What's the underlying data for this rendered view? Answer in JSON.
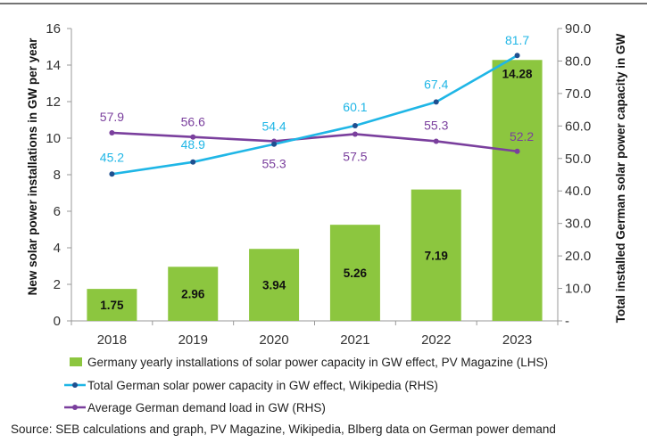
{
  "chart_data": {
    "type": "bar+line",
    "categories": [
      "2018",
      "2019",
      "2020",
      "2021",
      "2022",
      "2023"
    ],
    "bars": {
      "name": "Germany yearly installations of solar power capacity in GW effect, PV Magazine (LHS)",
      "axis": "left",
      "values": [
        1.75,
        2.96,
        3.94,
        5.26,
        7.19,
        14.28
      ],
      "labels": [
        "1.75",
        "2.96",
        "3.94",
        "5.26",
        "7.19",
        "14.28"
      ],
      "color": "#8cc63f"
    },
    "lines": [
      {
        "name": "Total German solar power capacity in GW effect, Wikipedia (RHS)",
        "axis": "right",
        "values": [
          45.2,
          48.9,
          54.4,
          60.1,
          67.4,
          81.7
        ],
        "labels": [
          "45.2",
          "48.9",
          "54.4",
          "60.1",
          "67.4",
          "81.7"
        ],
        "color": "#1fb6e6",
        "marker_color": "#1f4f8f"
      },
      {
        "name": "Average German demand load in GW (RHS)",
        "axis": "right",
        "values": [
          57.9,
          56.6,
          55.3,
          57.5,
          55.3,
          52.2
        ],
        "labels": [
          "57.9",
          "56.6",
          "55.3",
          "57.5",
          "55.3",
          "52.2"
        ],
        "color": "#7a3f9d"
      }
    ],
    "left_axis": {
      "title": "New solar power installations in GW per year",
      "range": [
        0,
        16
      ],
      "ticks": [
        0,
        2,
        4,
        6,
        8,
        10,
        12,
        14,
        16
      ],
      "tick_labels": [
        "0",
        "2",
        "4",
        "6",
        "8",
        "10",
        "12",
        "14",
        "16"
      ]
    },
    "right_axis": {
      "title": "Total installed German solar power capacity in GW",
      "range": [
        0,
        90
      ],
      "ticks": [
        0,
        10,
        20,
        30,
        40,
        50,
        60,
        70,
        80,
        90
      ],
      "tick_labels": [
        "-",
        "10.0",
        "20.0",
        "30.0",
        "40.0",
        "50.0",
        "60.0",
        "70.0",
        "80.0",
        "90.0"
      ]
    },
    "legend_position": "bottom",
    "grid": false
  },
  "source": "Source: SEB calculations and graph, PV Magazine, Wikipedia, Blberg data on German power demand"
}
